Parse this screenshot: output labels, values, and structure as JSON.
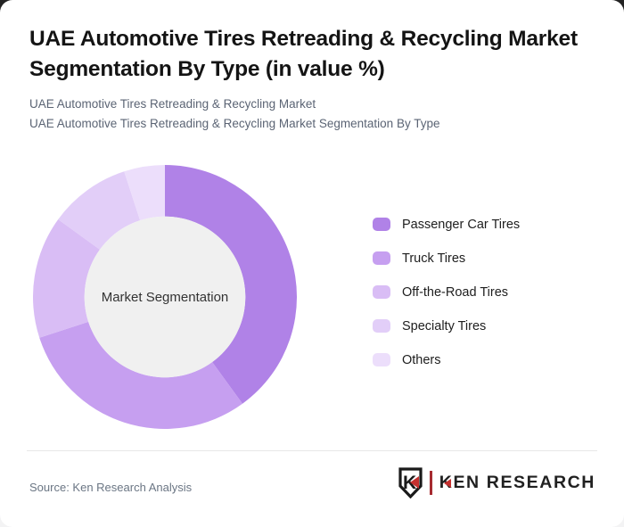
{
  "header": {
    "title": "UAE Automotive Tires Retreading & Recycling Market Segmentation By Type (in value %)",
    "subtitle_line1": "UAE Automotive Tires Retreading & Recycling Market",
    "subtitle_line2": "UAE Automotive Tires Retreading & Recycling Market Segmentation By Type"
  },
  "chart_data": {
    "type": "pie",
    "variant": "donut",
    "title": "UAE Automotive Tires Retreading & Recycling Market Segmentation By Type (in value %)",
    "center_label": "Market Segmentation",
    "categories": [
      "Passenger Car Tires",
      "Truck Tires",
      "Off-the-Road Tires",
      "Specialty Tires",
      "Others"
    ],
    "values": [
      40,
      30,
      15,
      10,
      5
    ],
    "unit": "value %",
    "colors": [
      "#b082e7",
      "#c69ff0",
      "#d9bdf5",
      "#e2cef8",
      "#ecdefb"
    ],
    "start_angle_deg": 0,
    "direction": "clockwise",
    "inner_radius_ratio": 0.61,
    "inner_circle_color": "#f0f0f0",
    "legend_position": "right",
    "data_labels": false
  },
  "footer": {
    "source_text": "Source: Ken Research Analysis",
    "logo_letter": "K",
    "logo_text_first_letter": "K",
    "logo_text_rest": "EN RESEARCH",
    "accent_red": "#c5302f"
  }
}
